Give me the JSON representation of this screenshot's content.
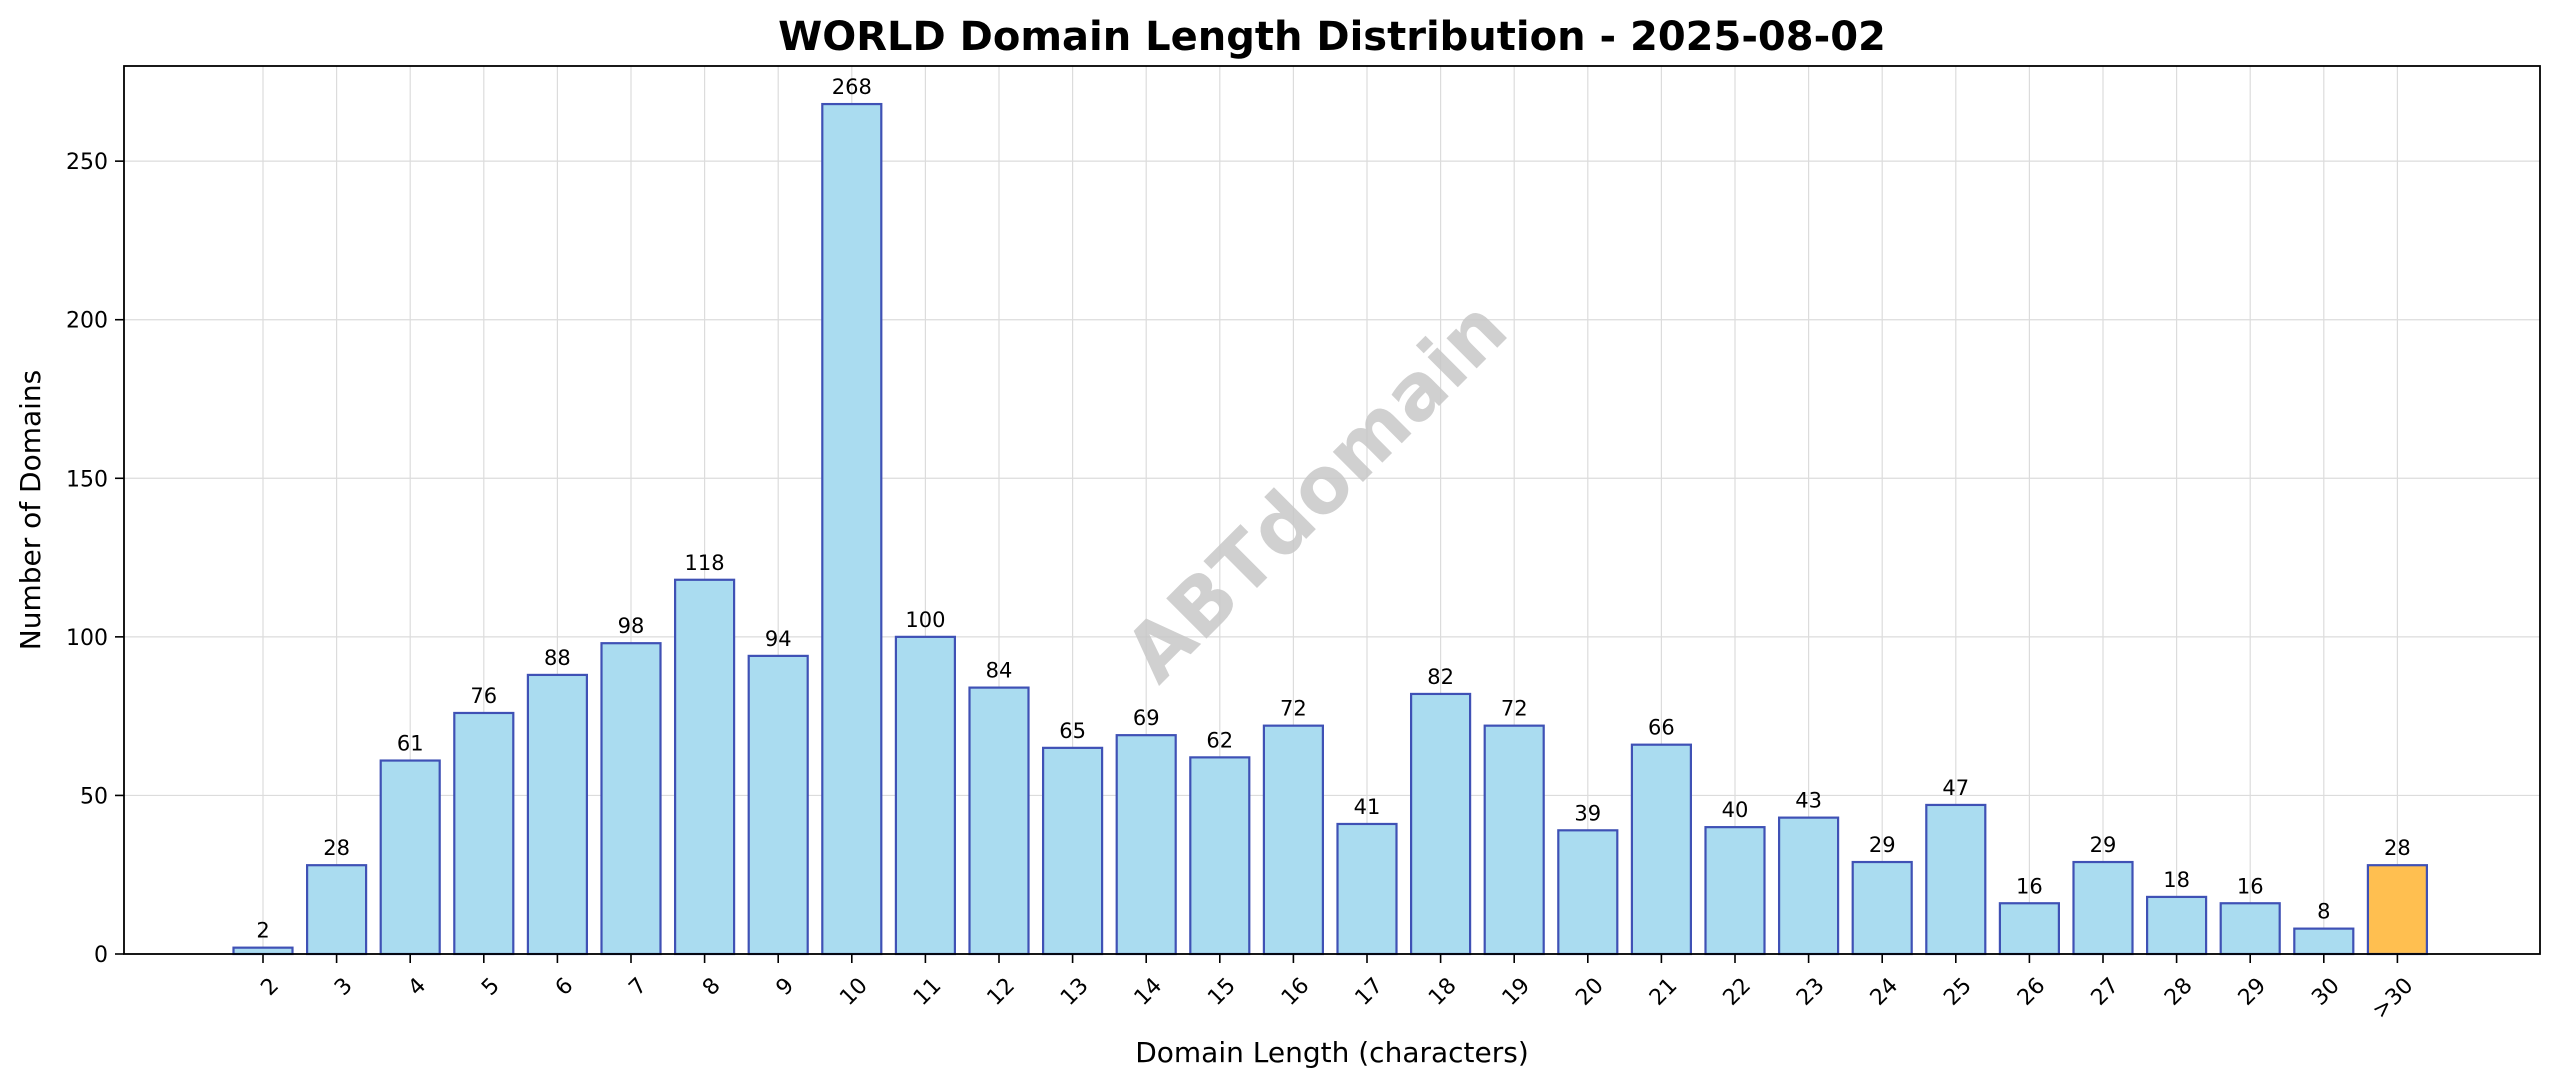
{
  "chart_data": {
    "type": "bar",
    "title": "WORLD Domain Length Distribution - 2025-08-02",
    "xlabel": "Domain Length (characters)",
    "ylabel": "Number of Domains",
    "watermark": "ABTdomain",
    "categories": [
      "2",
      "3",
      "4",
      "5",
      "6",
      "7",
      "8",
      "9",
      "10",
      "11",
      "12",
      "13",
      "14",
      "15",
      "16",
      "17",
      "18",
      "19",
      "20",
      "21",
      "22",
      "23",
      "24",
      "25",
      "26",
      "27",
      "28",
      "29",
      "30",
      ">30"
    ],
    "values": [
      2,
      28,
      61,
      76,
      88,
      98,
      118,
      94,
      268,
      100,
      84,
      65,
      69,
      62,
      72,
      41,
      82,
      72,
      39,
      66,
      40,
      43,
      29,
      47,
      16,
      29,
      18,
      16,
      8,
      28
    ],
    "ylim": [
      0,
      280
    ],
    "yticks": [
      0,
      50,
      100,
      150,
      200,
      250
    ],
    "grid": true,
    "colors": {
      "bar": "#aadcf0",
      "highlight": "#ffbf50",
      "edge": "#3f51b5"
    },
    "highlight_category": ">30"
  }
}
